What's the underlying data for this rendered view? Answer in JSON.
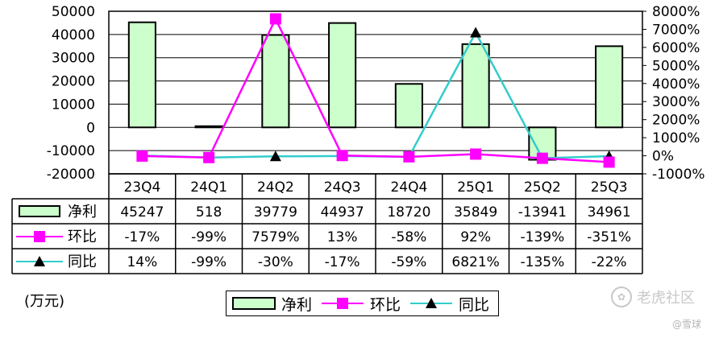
{
  "chart_data": {
    "type": "bar",
    "categories": [
      "23Q4",
      "24Q1",
      "24Q2",
      "24Q3",
      "24Q4",
      "25Q1",
      "25Q2",
      "25Q3"
    ],
    "left_axis": {
      "ticks": [
        "50000",
        "40000",
        "30000",
        "20000",
        "10000",
        "0",
        "-10000",
        "-20000"
      ],
      "ylim": [
        -20000,
        50000
      ]
    },
    "right_axis": {
      "ticks": [
        "8000%",
        "7000%",
        "6000%",
        "5000%",
        "4000%",
        "3000%",
        "2000%",
        "1000%",
        "0%",
        "-1000%"
      ],
      "ylim": [
        -1000,
        8000
      ]
    },
    "series": [
      {
        "name": "净利",
        "type": "bar",
        "axis": "left",
        "color": "#ccffcc",
        "values": [
          45247,
          518,
          39779,
          44937,
          18720,
          35849,
          -13941,
          34961
        ],
        "labels": [
          "45247",
          "518",
          "39779",
          "44937",
          "18720",
          "35849",
          "-13941",
          "34961"
        ]
      },
      {
        "name": "环比",
        "type": "line",
        "axis": "right",
        "color": "#ff00ff",
        "marker": "square",
        "values": [
          -17,
          -99,
          7579,
          13,
          -58,
          92,
          -139,
          -351
        ],
        "labels": [
          "-17%",
          "-99%",
          "7579%",
          "13%",
          "-58%",
          "92%",
          "-139%",
          "-351%"
        ]
      },
      {
        "name": "同比",
        "type": "line",
        "axis": "right",
        "color": "#33cccc",
        "marker": "triangle",
        "values": [
          14,
          -99,
          -30,
          -17,
          -59,
          6821,
          -135,
          -22
        ],
        "labels": [
          "14%",
          "-99%",
          "-30%",
          "-17%",
          "-59%",
          "6821%",
          "-135%",
          "-22%"
        ]
      }
    ],
    "unit_label": "(万元)",
    "legend_position": "bottom",
    "grid": true
  },
  "watermark": {
    "icon": "tiger-logo-icon",
    "text": "老虎社区",
    "author": "@雪球"
  }
}
